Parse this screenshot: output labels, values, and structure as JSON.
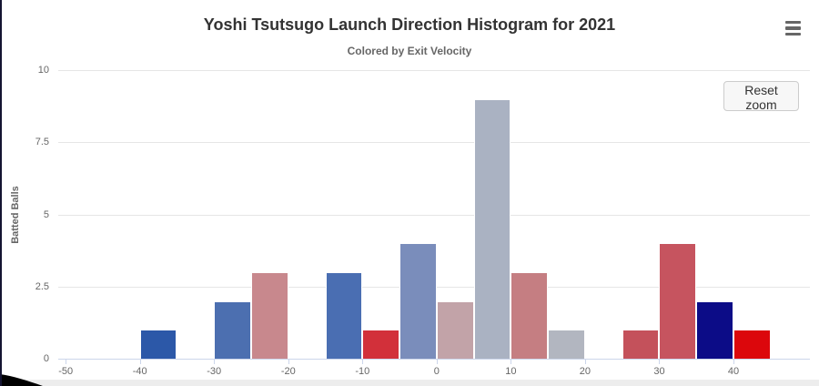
{
  "toolbar": {
    "reset_zoom_label": "Reset zoom",
    "menu_icon": "hamburger-menu-icon"
  },
  "chart_data": {
    "type": "bar",
    "title": "Yoshi Tsutsugo Launch Direction Histogram for 2021",
    "subtitle": "Colored by Exit Velocity",
    "xlabel": "",
    "ylabel": "Batted Balls",
    "xlim": [
      -51,
      50.3
    ],
    "ylim": [
      0,
      10
    ],
    "x_ticks": [
      -50,
      -40,
      -30,
      -20,
      -10,
      0,
      10,
      20,
      30,
      40
    ],
    "y_ticks": [
      0,
      2.5,
      5,
      7.5,
      10
    ],
    "grid": "horizontal",
    "legend": "none",
    "bin_width": 5,
    "bars": [
      {
        "bin_start": -40,
        "count": 1,
        "color": "#2C58A8"
      },
      {
        "bin_start": -30,
        "count": 2,
        "color": "#4C6FB0"
      },
      {
        "bin_start": -25,
        "count": 3,
        "color": "#C8888D"
      },
      {
        "bin_start": -15,
        "count": 3,
        "color": "#4A6EB2"
      },
      {
        "bin_start": -10,
        "count": 1,
        "color": "#D2303A"
      },
      {
        "bin_start": -5,
        "count": 4,
        "color": "#7A8DBB"
      },
      {
        "bin_start": 0,
        "count": 2,
        "color": "#C2A3A8"
      },
      {
        "bin_start": 5,
        "count": 9,
        "color": "#AAB2C2"
      },
      {
        "bin_start": 10,
        "count": 3,
        "color": "#C57E82"
      },
      {
        "bin_start": 15,
        "count": 1,
        "color": "#B2B6C0"
      },
      {
        "bin_start": 25,
        "count": 1,
        "color": "#C4515B"
      },
      {
        "bin_start": 30,
        "count": 4,
        "color": "#C6545F"
      },
      {
        "bin_start": 35,
        "count": 2,
        "color": "#0C0C87"
      },
      {
        "bin_start": 40,
        "count": 1,
        "color": "#DC070C"
      }
    ]
  }
}
